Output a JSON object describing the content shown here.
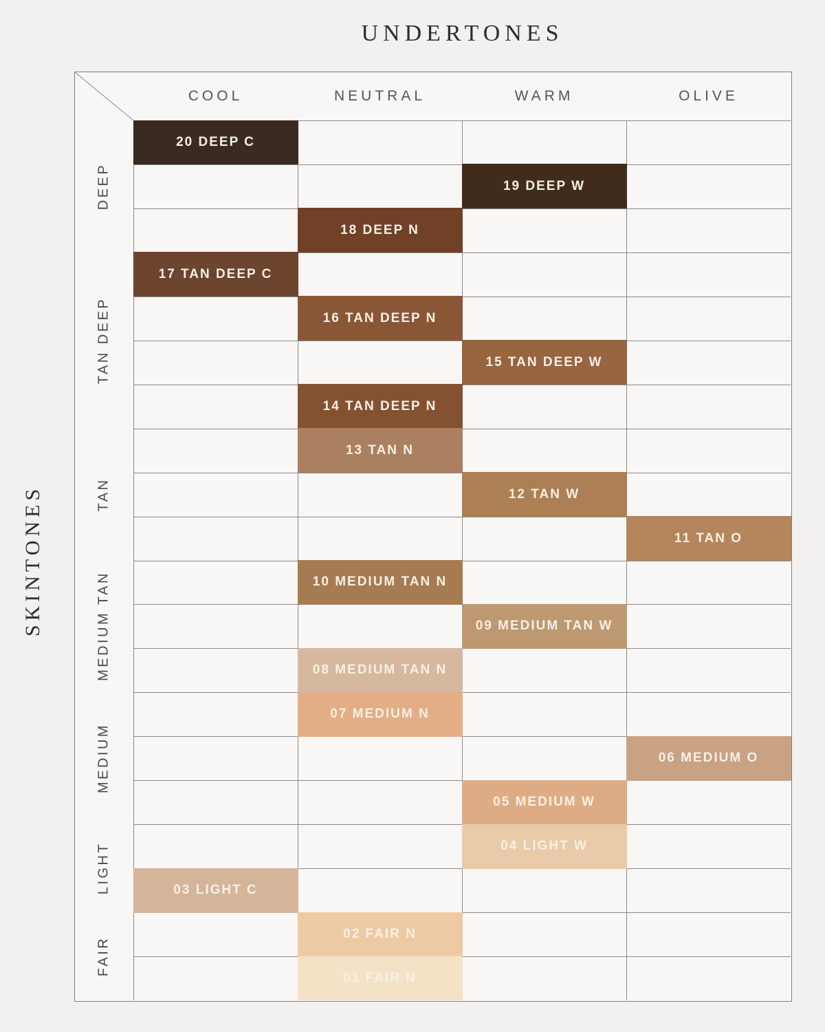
{
  "title": "UNDERTONES",
  "side_axis_title": "SKINTONES",
  "colors": {
    "page_background": "#f2f1ef",
    "grid_background": "#f8f7f5",
    "grid_line": "#8c8a88",
    "outer_border": "#807e7c",
    "title_text": "#2f2d2a",
    "column_header_text": "#56544f",
    "group_label_text": "#4b4945",
    "shade_label_text": "#f6f0e6"
  },
  "chart_data": {
    "type": "heatmap",
    "title": "UNDERTONES",
    "xlabel": "UNDERTONES",
    "ylabel": "SKINTONES",
    "legend_position": "none",
    "grid": true,
    "columns": [
      "COOL",
      "NEUTRAL",
      "WARM",
      "OLIVE"
    ],
    "skintone_groups": [
      {
        "label": "DEEP",
        "row_start": 1,
        "row_end": 3
      },
      {
        "label": "TAN DEEP",
        "row_start": 4,
        "row_end": 7
      },
      {
        "label": "TAN",
        "row_start": 8,
        "row_end": 10
      },
      {
        "label": "MEDIUM TAN",
        "row_start": 11,
        "row_end": 13
      },
      {
        "label": "MEDIUM",
        "row_start": 14,
        "row_end": 16
      },
      {
        "label": "LIGHT",
        "row_start": 17,
        "row_end": 18
      },
      {
        "label": "FAIR",
        "row_start": 19,
        "row_end": 20
      }
    ],
    "shades": [
      {
        "row": 1,
        "label": "20 DEEP C",
        "skintone": "DEEP",
        "undertone": "COOL",
        "color": "#3a2a21"
      },
      {
        "row": 2,
        "label": "19 DEEP W",
        "skintone": "DEEP",
        "undertone": "WARM",
        "color": "#412c1c"
      },
      {
        "row": 3,
        "label": "18 DEEP N",
        "skintone": "DEEP",
        "undertone": "NEUTRAL",
        "color": "#714127"
      },
      {
        "row": 4,
        "label": "17 TAN DEEP C",
        "skintone": "TAN DEEP",
        "undertone": "COOL",
        "color": "#6d442e"
      },
      {
        "row": 5,
        "label": "16 TAN DEEP N",
        "skintone": "TAN DEEP",
        "undertone": "NEUTRAL",
        "color": "#8a5736"
      },
      {
        "row": 6,
        "label": "15 TAN DEEP W",
        "skintone": "TAN DEEP",
        "undertone": "WARM",
        "color": "#97653f"
      },
      {
        "row": 7,
        "label": "14 TAN DEEP N",
        "skintone": "TAN DEEP",
        "undertone": "NEUTRAL",
        "color": "#845231"
      },
      {
        "row": 8,
        "label": "13 TAN N",
        "skintone": "TAN",
        "undertone": "NEUTRAL",
        "color": "#ab8060"
      },
      {
        "row": 9,
        "label": "12 TAN W",
        "skintone": "TAN",
        "undertone": "WARM",
        "color": "#ad7f55"
      },
      {
        "row": 10,
        "label": "11 TAN O",
        "skintone": "TAN",
        "undertone": "OLIVE",
        "color": "#b5855c"
      },
      {
        "row": 11,
        "label": "10 MEDIUM TAN N",
        "skintone": "MEDIUM TAN",
        "undertone": "NEUTRAL",
        "color": "#a77b52"
      },
      {
        "row": 12,
        "label": "09 MEDIUM TAN W",
        "skintone": "MEDIUM TAN",
        "undertone": "WARM",
        "color": "#bd9871"
      },
      {
        "row": 13,
        "label": "08 MEDIUM TAN N",
        "skintone": "MEDIUM TAN",
        "undertone": "NEUTRAL",
        "color": "#d6b89e"
      },
      {
        "row": 14,
        "label": "07 MEDIUM N",
        "skintone": "MEDIUM",
        "undertone": "NEUTRAL",
        "color": "#e3ae86"
      },
      {
        "row": 15,
        "label": "06 MEDIUM O",
        "skintone": "MEDIUM",
        "undertone": "OLIVE",
        "color": "#c9a183"
      },
      {
        "row": 16,
        "label": "05 MEDIUM W",
        "skintone": "MEDIUM",
        "undertone": "WARM",
        "color": "#deac84"
      },
      {
        "row": 17,
        "label": "04 LIGHT W",
        "skintone": "LIGHT",
        "undertone": "WARM",
        "color": "#e9cba9"
      },
      {
        "row": 18,
        "label": "03 LIGHT C",
        "skintone": "LIGHT",
        "undertone": "COOL",
        "color": "#d4b59a"
      },
      {
        "row": 19,
        "label": "02 FAIR N",
        "skintone": "FAIR",
        "undertone": "NEUTRAL",
        "color": "#eecaa4"
      },
      {
        "row": 20,
        "label": "01 FAIR N",
        "skintone": "FAIR",
        "undertone": "NEUTRAL",
        "color": "#f4e2c6"
      }
    ]
  }
}
